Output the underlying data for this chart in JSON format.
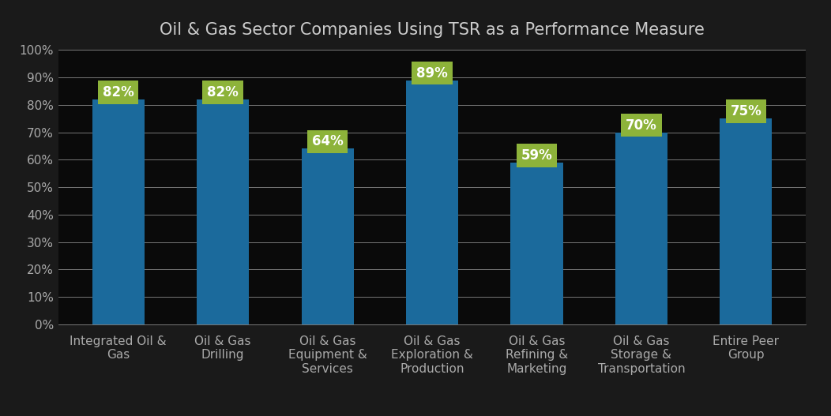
{
  "title": "Oil & Gas Sector Companies Using TSR as a Performance Measure",
  "categories": [
    "Integrated Oil &\nGas",
    "Oil & Gas\nDrilling",
    "Oil & Gas\nEquipment &\nServices",
    "Oil & Gas\nExploration &\nProduction",
    "Oil & Gas\nRefining &\nMarketing",
    "Oil & Gas\nStorage &\nTransportation",
    "Entire Peer\nGroup"
  ],
  "values": [
    82,
    82,
    64,
    89,
    59,
    70,
    75
  ],
  "bar_color": "#1B6A9C",
  "label_bg_color": "#8DB33A",
  "label_text_color": "#ffffff",
  "background_color": "#1a1a1a",
  "plot_bg_color": "#0a0a0a",
  "title_color": "#cccccc",
  "tick_label_color": "#aaaaaa",
  "grid_color": "#888888",
  "ylim": [
    0,
    100
  ],
  "yticks": [
    0,
    10,
    20,
    30,
    40,
    50,
    60,
    70,
    80,
    90,
    100
  ],
  "ytick_labels": [
    "0%",
    "10%",
    "20%",
    "30%",
    "40%",
    "50%",
    "60%",
    "70%",
    "80%",
    "90%",
    "100%"
  ],
  "title_fontsize": 15,
  "tick_fontsize": 11,
  "label_fontsize": 12,
  "bar_width": 0.5
}
